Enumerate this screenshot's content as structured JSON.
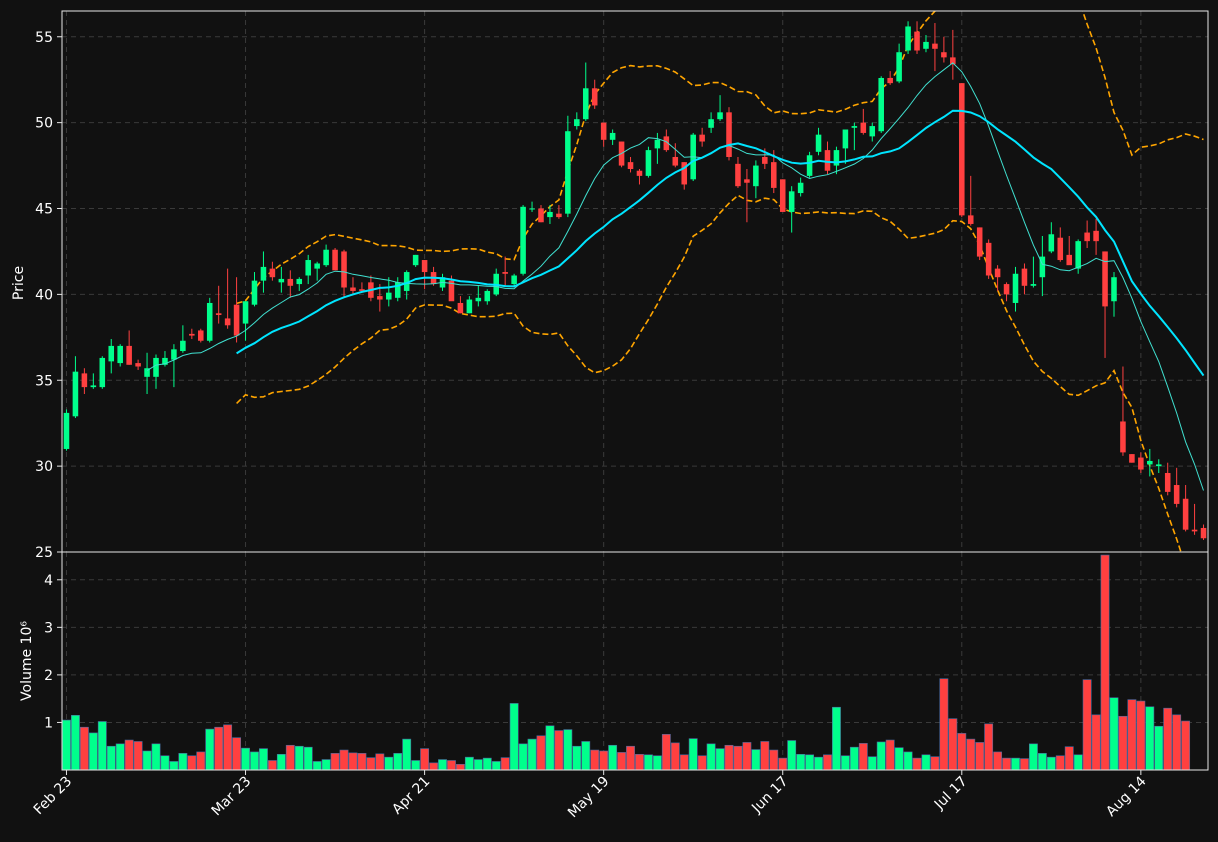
{
  "chart_data": {
    "type": "candlestick",
    "colors": {
      "up": "#00ff8c",
      "down": "#ff4040",
      "volume_edge": "#4a6aa0",
      "ma_fast": "#40e0d0",
      "ma_slow": "#00e5ff",
      "bands": "#ffa500",
      "background": "#111111"
    },
    "price_panel": {
      "ylabel": "Price",
      "ylim": [
        25,
        56.5
      ],
      "yticks": [
        25,
        30,
        35,
        40,
        45,
        50,
        55
      ],
      "candles": [
        {
          "o": 31.0,
          "h": 33.3,
          "l": 30.9,
          "c": 33.1
        },
        {
          "o": 32.9,
          "h": 36.4,
          "l": 32.8,
          "c": 35.5
        },
        {
          "o": 35.4,
          "h": 35.7,
          "l": 34.2,
          "c": 34.6
        },
        {
          "o": 34.6,
          "h": 35.4,
          "l": 34.5,
          "c": 34.7
        },
        {
          "o": 34.6,
          "h": 36.4,
          "l": 34.5,
          "c": 36.3
        },
        {
          "o": 36.1,
          "h": 37.4,
          "l": 35.4,
          "c": 37.0
        },
        {
          "o": 36.0,
          "h": 37.1,
          "l": 35.8,
          "c": 37.0
        },
        {
          "o": 37.0,
          "h": 37.9,
          "l": 35.9,
          "c": 35.9
        },
        {
          "o": 36.0,
          "h": 36.2,
          "l": 35.6,
          "c": 35.8
        },
        {
          "o": 35.2,
          "h": 36.6,
          "l": 34.2,
          "c": 35.7
        },
        {
          "o": 35.2,
          "h": 36.5,
          "l": 34.5,
          "c": 36.3
        },
        {
          "o": 35.9,
          "h": 36.7,
          "l": 35.8,
          "c": 36.3
        },
        {
          "o": 36.2,
          "h": 37.1,
          "l": 34.6,
          "c": 36.8
        },
        {
          "o": 36.7,
          "h": 38.2,
          "l": 36.6,
          "c": 37.3
        },
        {
          "o": 37.7,
          "h": 38.0,
          "l": 37.4,
          "c": 37.6
        },
        {
          "o": 37.9,
          "h": 38.0,
          "l": 37.2,
          "c": 37.3
        },
        {
          "o": 37.3,
          "h": 39.8,
          "l": 37.2,
          "c": 39.5
        },
        {
          "o": 38.9,
          "h": 40.5,
          "l": 38.3,
          "c": 38.8
        },
        {
          "o": 38.6,
          "h": 41.5,
          "l": 38.0,
          "c": 38.2
        },
        {
          "o": 39.4,
          "h": 41.0,
          "l": 37.2,
          "c": 37.6
        },
        {
          "o": 38.3,
          "h": 39.6,
          "l": 37.3,
          "c": 39.6
        },
        {
          "o": 39.4,
          "h": 41.3,
          "l": 39.3,
          "c": 40.8
        },
        {
          "o": 40.8,
          "h": 42.5,
          "l": 40.1,
          "c": 41.6
        },
        {
          "o": 41.5,
          "h": 41.9,
          "l": 40.8,
          "c": 41.0
        },
        {
          "o": 40.7,
          "h": 41.6,
          "l": 40.1,
          "c": 40.9
        },
        {
          "o": 40.9,
          "h": 41.4,
          "l": 39.8,
          "c": 40.5
        },
        {
          "o": 40.6,
          "h": 41.0,
          "l": 40.2,
          "c": 40.9
        },
        {
          "o": 41.1,
          "h": 42.3,
          "l": 40.6,
          "c": 42.0
        },
        {
          "o": 41.5,
          "h": 41.9,
          "l": 40.8,
          "c": 41.8
        },
        {
          "o": 41.7,
          "h": 42.9,
          "l": 41.6,
          "c": 42.6
        },
        {
          "o": 42.6,
          "h": 42.7,
          "l": 41.5,
          "c": 41.4
        },
        {
          "o": 42.5,
          "h": 42.6,
          "l": 39.8,
          "c": 40.4
        },
        {
          "o": 40.4,
          "h": 41.0,
          "l": 40.0,
          "c": 40.2
        },
        {
          "o": 40.3,
          "h": 40.7,
          "l": 40.1,
          "c": 40.2
        },
        {
          "o": 40.7,
          "h": 41.1,
          "l": 39.6,
          "c": 39.8
        },
        {
          "o": 39.9,
          "h": 40.6,
          "l": 39.0,
          "c": 39.7
        },
        {
          "o": 39.7,
          "h": 41.0,
          "l": 39.3,
          "c": 40.1
        },
        {
          "o": 39.8,
          "h": 41.0,
          "l": 39.6,
          "c": 40.7
        },
        {
          "o": 40.2,
          "h": 41.4,
          "l": 39.7,
          "c": 41.3
        },
        {
          "o": 41.7,
          "h": 42.3,
          "l": 41.6,
          "c": 42.3
        },
        {
          "o": 42.0,
          "h": 42.0,
          "l": 40.3,
          "c": 41.3
        },
        {
          "o": 41.3,
          "h": 41.6,
          "l": 40.5,
          "c": 40.6
        },
        {
          "o": 40.4,
          "h": 41.2,
          "l": 40.2,
          "c": 41.0
        },
        {
          "o": 40.8,
          "h": 41.1,
          "l": 39.7,
          "c": 39.6
        },
        {
          "o": 39.5,
          "h": 39.9,
          "l": 38.9,
          "c": 38.9
        },
        {
          "o": 38.9,
          "h": 39.9,
          "l": 38.9,
          "c": 39.7
        },
        {
          "o": 39.6,
          "h": 40.5,
          "l": 39.3,
          "c": 39.8
        },
        {
          "o": 39.6,
          "h": 40.3,
          "l": 39.4,
          "c": 40.2
        },
        {
          "o": 40.0,
          "h": 41.5,
          "l": 39.9,
          "c": 41.2
        },
        {
          "o": 41.3,
          "h": 42.2,
          "l": 40.5,
          "c": 41.2
        },
        {
          "o": 40.6,
          "h": 41.2,
          "l": 40.4,
          "c": 41.1
        },
        {
          "o": 41.2,
          "h": 45.2,
          "l": 41.1,
          "c": 45.1
        },
        {
          "o": 45.0,
          "h": 45.4,
          "l": 44.8,
          "c": 45.0
        },
        {
          "o": 45.0,
          "h": 45.2,
          "l": 44.2,
          "c": 44.2
        },
        {
          "o": 44.5,
          "h": 45.2,
          "l": 44.1,
          "c": 44.8
        },
        {
          "o": 44.7,
          "h": 45.2,
          "l": 44.4,
          "c": 44.5
        },
        {
          "o": 44.7,
          "h": 50.4,
          "l": 44.5,
          "c": 49.5
        },
        {
          "o": 49.8,
          "h": 50.6,
          "l": 49.6,
          "c": 50.2
        },
        {
          "o": 50.2,
          "h": 53.5,
          "l": 50.1,
          "c": 52.0
        },
        {
          "o": 52.0,
          "h": 52.5,
          "l": 50.8,
          "c": 51.0
        },
        {
          "o": 50.0,
          "h": 50.0,
          "l": 48.6,
          "c": 49.0
        },
        {
          "o": 49.0,
          "h": 49.6,
          "l": 48.7,
          "c": 49.4
        },
        {
          "o": 48.9,
          "h": 48.9,
          "l": 47.4,
          "c": 47.5
        },
        {
          "o": 47.7,
          "h": 48.0,
          "l": 47.1,
          "c": 47.3
        },
        {
          "o": 47.2,
          "h": 47.3,
          "l": 46.4,
          "c": 46.9
        },
        {
          "o": 46.9,
          "h": 48.6,
          "l": 46.8,
          "c": 48.4
        },
        {
          "o": 48.5,
          "h": 49.4,
          "l": 47.6,
          "c": 49.0
        },
        {
          "o": 49.2,
          "h": 49.6,
          "l": 48.3,
          "c": 48.4
        },
        {
          "o": 48.0,
          "h": 48.8,
          "l": 47.4,
          "c": 47.5
        },
        {
          "o": 47.7,
          "h": 47.7,
          "l": 46.1,
          "c": 46.4
        },
        {
          "o": 46.7,
          "h": 49.4,
          "l": 46.6,
          "c": 49.3
        },
        {
          "o": 49.3,
          "h": 49.7,
          "l": 48.6,
          "c": 48.9
        },
        {
          "o": 49.7,
          "h": 50.6,
          "l": 49.4,
          "c": 50.2
        },
        {
          "o": 50.2,
          "h": 51.6,
          "l": 50.1,
          "c": 50.6
        },
        {
          "o": 50.6,
          "h": 50.9,
          "l": 47.8,
          "c": 48.0
        },
        {
          "o": 47.6,
          "h": 48.0,
          "l": 46.2,
          "c": 46.3
        },
        {
          "o": 46.7,
          "h": 47.3,
          "l": 44.2,
          "c": 46.5
        },
        {
          "o": 46.3,
          "h": 47.8,
          "l": 45.6,
          "c": 47.5
        },
        {
          "o": 48.0,
          "h": 48.5,
          "l": 47.3,
          "c": 47.6
        },
        {
          "o": 47.7,
          "h": 48.4,
          "l": 45.9,
          "c": 46.2
        },
        {
          "o": 46.7,
          "h": 46.7,
          "l": 44.8,
          "c": 44.8
        },
        {
          "o": 44.8,
          "h": 46.3,
          "l": 43.6,
          "c": 46.0
        },
        {
          "o": 45.9,
          "h": 46.8,
          "l": 45.7,
          "c": 46.5
        },
        {
          "o": 46.9,
          "h": 48.3,
          "l": 46.8,
          "c": 48.1
        },
        {
          "o": 48.3,
          "h": 49.7,
          "l": 48.1,
          "c": 49.3
        },
        {
          "o": 48.4,
          "h": 48.9,
          "l": 47.0,
          "c": 47.2
        },
        {
          "o": 47.5,
          "h": 48.6,
          "l": 47.0,
          "c": 48.4
        },
        {
          "o": 48.5,
          "h": 49.6,
          "l": 47.6,
          "c": 49.6
        },
        {
          "o": 49.7,
          "h": 50.0,
          "l": 48.4,
          "c": 49.8
        },
        {
          "o": 50.0,
          "h": 50.8,
          "l": 49.3,
          "c": 49.4
        },
        {
          "o": 49.2,
          "h": 50.0,
          "l": 48.9,
          "c": 49.8
        },
        {
          "o": 49.5,
          "h": 52.7,
          "l": 49.4,
          "c": 52.6
        },
        {
          "o": 52.6,
          "h": 53.0,
          "l": 52.2,
          "c": 52.3
        },
        {
          "o": 52.4,
          "h": 54.6,
          "l": 52.3,
          "c": 54.1
        },
        {
          "o": 54.2,
          "h": 55.9,
          "l": 54.0,
          "c": 55.6
        },
        {
          "o": 55.3,
          "h": 55.9,
          "l": 54.0,
          "c": 54.2
        },
        {
          "o": 54.3,
          "h": 55.1,
          "l": 54.1,
          "c": 54.7
        },
        {
          "o": 54.6,
          "h": 55.8,
          "l": 53.0,
          "c": 54.3
        },
        {
          "o": 54.1,
          "h": 55.0,
          "l": 53.5,
          "c": 53.8
        },
        {
          "o": 53.8,
          "h": 55.4,
          "l": 52.5,
          "c": 53.4
        },
        {
          "o": 52.3,
          "h": 52.3,
          "l": 44.5,
          "c": 44.6
        },
        {
          "o": 44.6,
          "h": 46.9,
          "l": 44.0,
          "c": 44.1
        },
        {
          "o": 43.9,
          "h": 43.9,
          "l": 42.0,
          "c": 42.2
        },
        {
          "o": 43.0,
          "h": 43.2,
          "l": 40.9,
          "c": 41.1
        },
        {
          "o": 41.5,
          "h": 41.7,
          "l": 40.2,
          "c": 41.0
        },
        {
          "o": 40.6,
          "h": 40.7,
          "l": 39.6,
          "c": 40.0
        },
        {
          "o": 39.5,
          "h": 41.6,
          "l": 39.0,
          "c": 41.2
        },
        {
          "o": 41.5,
          "h": 41.8,
          "l": 40.0,
          "c": 40.5
        },
        {
          "o": 40.5,
          "h": 42.2,
          "l": 40.4,
          "c": 40.6
        },
        {
          "o": 41.0,
          "h": 43.4,
          "l": 39.9,
          "c": 42.2
        },
        {
          "o": 42.5,
          "h": 44.2,
          "l": 42.4,
          "c": 43.5
        },
        {
          "o": 43.3,
          "h": 43.9,
          "l": 41.9,
          "c": 42.0
        },
        {
          "o": 42.3,
          "h": 43.4,
          "l": 41.8,
          "c": 41.7
        },
        {
          "o": 41.5,
          "h": 43.2,
          "l": 41.2,
          "c": 43.1
        },
        {
          "o": 43.6,
          "h": 44.3,
          "l": 42.7,
          "c": 43.1
        },
        {
          "o": 43.7,
          "h": 44.4,
          "l": 42.3,
          "c": 43.1
        },
        {
          "o": 42.5,
          "h": 42.5,
          "l": 36.3,
          "c": 39.3
        },
        {
          "o": 39.6,
          "h": 41.3,
          "l": 38.7,
          "c": 41.0
        },
        {
          "o": 32.6,
          "h": 35.8,
          "l": 30.6,
          "c": 30.8
        },
        {
          "o": 30.7,
          "h": 30.7,
          "l": 30.2,
          "c": 30.2
        },
        {
          "o": 30.5,
          "h": 30.8,
          "l": 29.6,
          "c": 29.8
        },
        {
          "o": 30.1,
          "h": 31.0,
          "l": 29.4,
          "c": 30.3
        },
        {
          "o": 30.0,
          "h": 30.4,
          "l": 29.6,
          "c": 30.1
        },
        {
          "o": 29.6,
          "h": 30.2,
          "l": 28.3,
          "c": 28.5
        },
        {
          "o": 28.9,
          "h": 29.9,
          "l": 27.6,
          "c": 27.8
        },
        {
          "o": 28.1,
          "h": 28.9,
          "l": 26.2,
          "c": 26.3
        },
        {
          "o": 26.3,
          "h": 27.8,
          "l": 26.0,
          "c": 26.2
        },
        {
          "o": 26.4,
          "h": 26.6,
          "l": 25.7,
          "c": 25.8
        }
      ]
    },
    "volume_panel": {
      "ylabel": "Volume  10⁶",
      "ylim": [
        0,
        4.5
      ],
      "yticks": [
        1,
        2,
        3,
        4
      ],
      "values_millions": [
        1.05,
        1.15,
        0.9,
        0.78,
        1.02,
        0.5,
        0.55,
        0.63,
        0.6,
        0.4,
        0.55,
        0.3,
        0.18,
        0.35,
        0.3,
        0.38,
        0.86,
        0.9,
        0.95,
        0.68,
        0.46,
        0.38,
        0.45,
        0.2,
        0.33,
        0.52,
        0.5,
        0.48,
        0.18,
        0.22,
        0.35,
        0.42,
        0.36,
        0.35,
        0.26,
        0.34,
        0.27,
        0.35,
        0.65,
        0.2,
        0.45,
        0.15,
        0.22,
        0.2,
        0.12,
        0.27,
        0.22,
        0.25,
        0.18,
        0.26,
        1.4,
        0.55,
        0.65,
        0.72,
        0.93,
        0.83,
        0.85,
        0.5,
        0.6,
        0.42,
        0.4,
        0.52,
        0.37,
        0.5,
        0.33,
        0.32,
        0.3,
        0.75,
        0.57,
        0.32,
        0.66,
        0.3,
        0.55,
        0.45,
        0.52,
        0.5,
        0.58,
        0.43,
        0.6,
        0.42,
        0.25,
        0.62,
        0.33,
        0.32,
        0.27,
        0.32,
        1.32,
        0.3,
        0.48,
        0.56,
        0.28,
        0.59,
        0.63,
        0.47,
        0.38,
        0.25,
        0.32,
        0.28,
        1.92,
        1.08,
        0.77,
        0.65,
        0.58,
        0.97,
        0.38,
        0.25,
        0.25,
        0.24,
        0.55,
        0.35,
        0.27,
        0.3,
        0.49,
        0.32,
        1.9,
        1.16,
        4.52,
        1.52,
        1.13,
        1.48,
        1.45,
        1.33,
        0.92,
        1.3,
        1.16,
        1.03
      ]
    },
    "x_axis": {
      "tick_labels": [
        {
          "index": 0,
          "label": "Feb 23"
        },
        {
          "index": 20,
          "label": "Mar 23"
        },
        {
          "index": 40,
          "label": "Apr 21"
        },
        {
          "index": 60,
          "label": "May 19"
        },
        {
          "index": 80,
          "label": "Jun 17"
        },
        {
          "index": 100,
          "label": "Jul 17"
        },
        {
          "index": 120,
          "label": "Aug 14"
        }
      ]
    },
    "overlays": {
      "ma_fast": {
        "window": 10
      },
      "ma_slow": {
        "window": 20
      },
      "bollinger": {
        "window": 20,
        "k": 2
      }
    },
    "grid": true
  }
}
